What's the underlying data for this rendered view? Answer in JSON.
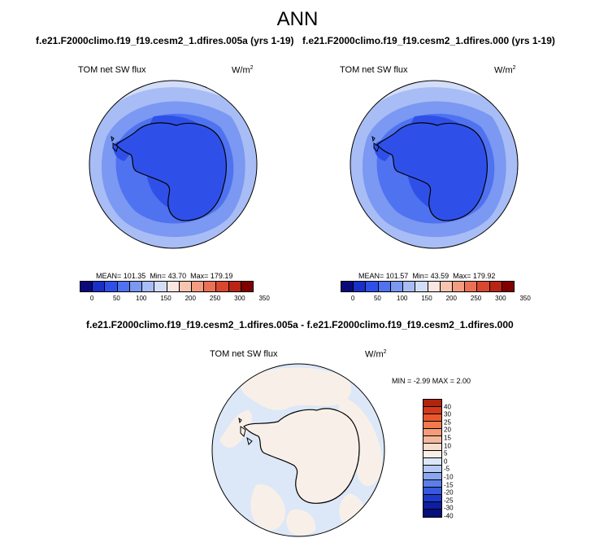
{
  "figure": {
    "title": "ANN"
  },
  "panels": [
    {
      "case_title": "f.e21.F2000climo.f19_f19.cesm2_1.dfires.005a (yrs 1-19)",
      "variable": "TOM net SW flux",
      "units_base": "W/m",
      "units_exp": "2",
      "stats": {
        "mean": "MEAN= 101.35",
        "min": "Min=  43.70",
        "max": "Max= 179.19"
      }
    },
    {
      "case_title": "f.e21.F2000climo.f19_f19.cesm2_1.dfires.000 (yrs 1-19)",
      "variable": "TOM net SW flux",
      "units_base": "W/m",
      "units_exp": "2",
      "stats": {
        "mean": "MEAN= 101.57",
        "min": "Min=  43.59",
        "max": "Max= 179.92"
      }
    }
  ],
  "diff_panel": {
    "title": "f.e21.F2000climo.f19_f19.cesm2_1.dfires.005a - f.e21.F2000climo.f19_f19.cesm2_1.dfires.000",
    "variable": "TOM net SW flux",
    "units_base": "W/m",
    "units_exp": "2",
    "stats": "MIN = -2.99 MAX =  2.00"
  },
  "colorbar_abs": {
    "colors": [
      "#0a0a7a",
      "#1a2fc8",
      "#2f50e8",
      "#4f72f0",
      "#7b98f2",
      "#a8bdf5",
      "#d3ddf8",
      "#fbe7df",
      "#f8c4b0",
      "#f59c80",
      "#ea7155",
      "#d9472f",
      "#b82515",
      "#800000"
    ],
    "tick_labels": [
      "0",
      "50",
      "100",
      "150",
      "200",
      "250",
      "300",
      "350"
    ]
  },
  "colorbar_diff": {
    "colors": [
      "#b0240c",
      "#d33a1c",
      "#e8582d",
      "#f07a4f",
      "#f29c78",
      "#f4b99d",
      "#f8dccc",
      "#f8f0e8",
      "#dce8f7",
      "#b5c9f3",
      "#8aa6ee",
      "#5d7ee8",
      "#3659e0",
      "#1d39c8",
      "#0d1ea2",
      "#06107a"
    ],
    "tick_labels": [
      "40",
      "30",
      "25",
      "20",
      "15",
      "10",
      "5",
      "0",
      "-5",
      "-10",
      "-15",
      "-20",
      "-25",
      "-30",
      "-40"
    ]
  }
}
